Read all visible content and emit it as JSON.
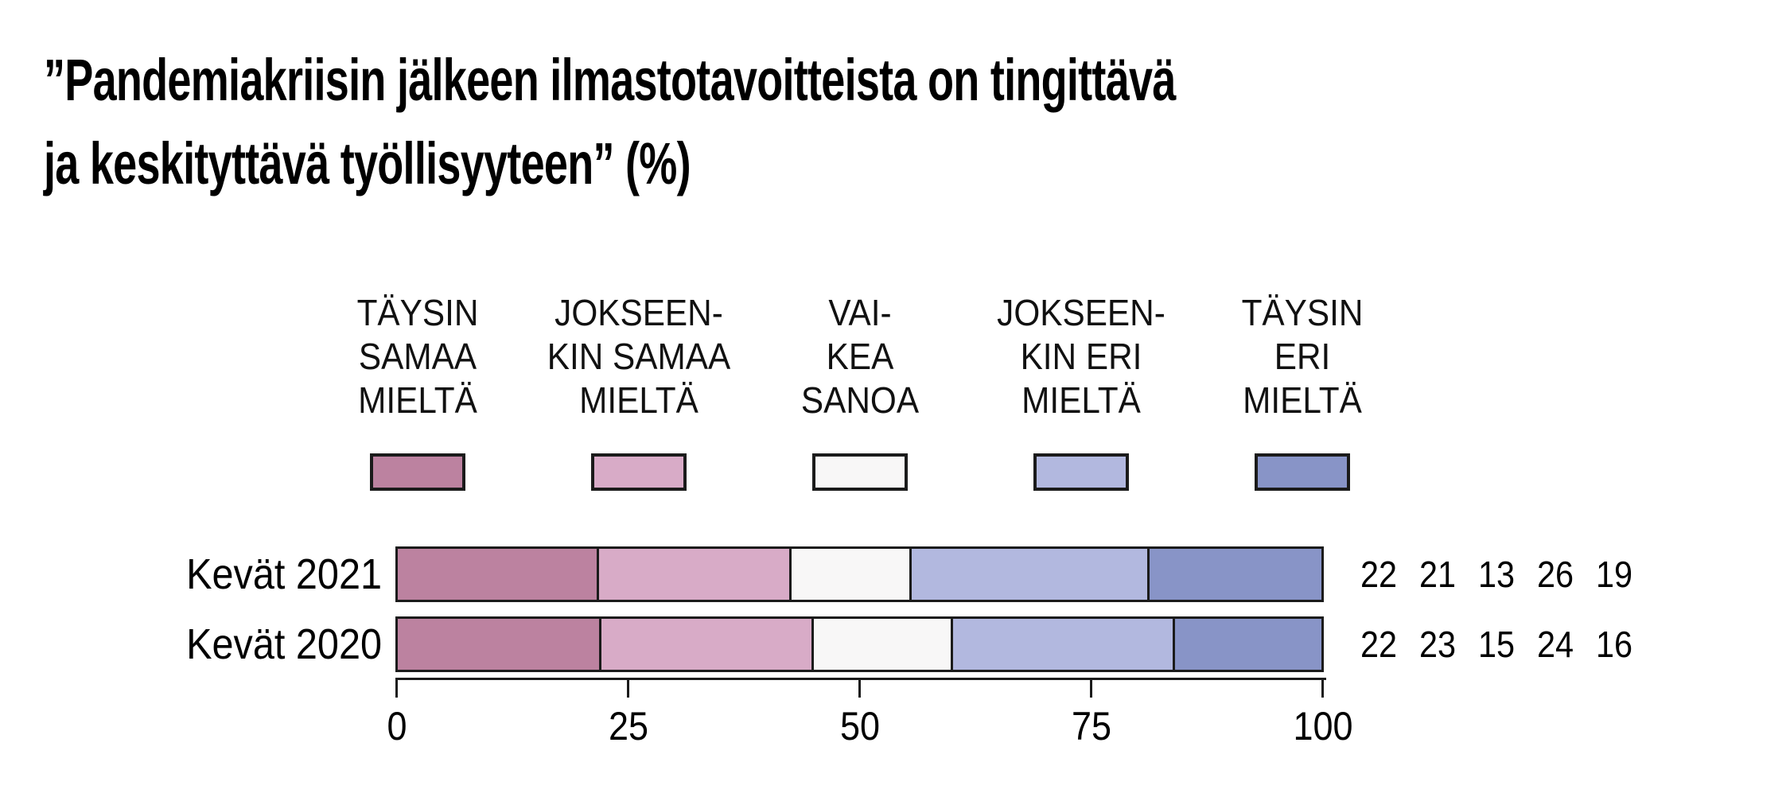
{
  "title_lines": [
    "”Pandemiakriisin jälkeen ilmastotavoitteista on tingittävä",
    "ja keskityttävä työllisyyteen” (%)"
  ],
  "colors": {
    "strongly_agree": "#BC82A0",
    "somewhat_agree": "#D8ABC7",
    "hard_to_say": "#F8F7F7",
    "somewhat_disagree": "#B2B8DF",
    "strongly_disagree": "#8894C7",
    "outline": "#1B1B1B",
    "background": "#FFFFFF",
    "text": "#000000"
  },
  "legend": {
    "items": [
      {
        "lines": [
          "TÄYSIN",
          "SAMAA",
          "MIELTÄ"
        ],
        "color": "#BC82A0"
      },
      {
        "lines": [
          "JOKSEEN-",
          "KIN SAMAA",
          "MIELTÄ"
        ],
        "color": "#D8ABC7"
      },
      {
        "lines": [
          "VAI-",
          "KEA",
          "SANOA"
        ],
        "color": "#F8F7F7"
      },
      {
        "lines": [
          "JOKSEEN-",
          "KIN ERI",
          "MIELTÄ"
        ],
        "color": "#B2B8DF"
      },
      {
        "lines": [
          "TÄYSIN",
          "ERI",
          "MIELTÄ"
        ],
        "color": "#8894C7"
      }
    ]
  },
  "chart_data": {
    "type": "bar",
    "orientation": "horizontal_stacked",
    "title": "”Pandemiakriisin jälkeen ilmastotavoitteista on tingittävä ja keskityttävä työllisyyteen” (%)",
    "categories": [
      "Kevät 2021",
      "Kevät 2020"
    ],
    "series": [
      {
        "name": "Täysin samaa mieltä",
        "color": "#BC82A0",
        "values": [
          22,
          22
        ]
      },
      {
        "name": "Jokseenkin samaa mieltä",
        "color": "#D8ABC7",
        "values": [
          21,
          23
        ]
      },
      {
        "name": "Vaikea sanoa",
        "color": "#F8F7F7",
        "values": [
          13,
          15
        ]
      },
      {
        "name": "Jokseenkin eri mieltä",
        "color": "#B2B8DF",
        "values": [
          26,
          24
        ]
      },
      {
        "name": "Täysin eri mieltä",
        "color": "#8894C7",
        "values": [
          19,
          16
        ]
      }
    ],
    "value_labels_right": [
      [
        "22",
        "21",
        "13",
        "26",
        "19"
      ],
      [
        "22",
        "23",
        "15",
        "24",
        "16"
      ]
    ],
    "xlabel": "",
    "ylabel": "",
    "xlim": [
      0,
      100
    ],
    "x_ticks": [
      "0",
      "25",
      "50",
      "75",
      "100"
    ],
    "grid": "off",
    "legend_position": "top"
  }
}
